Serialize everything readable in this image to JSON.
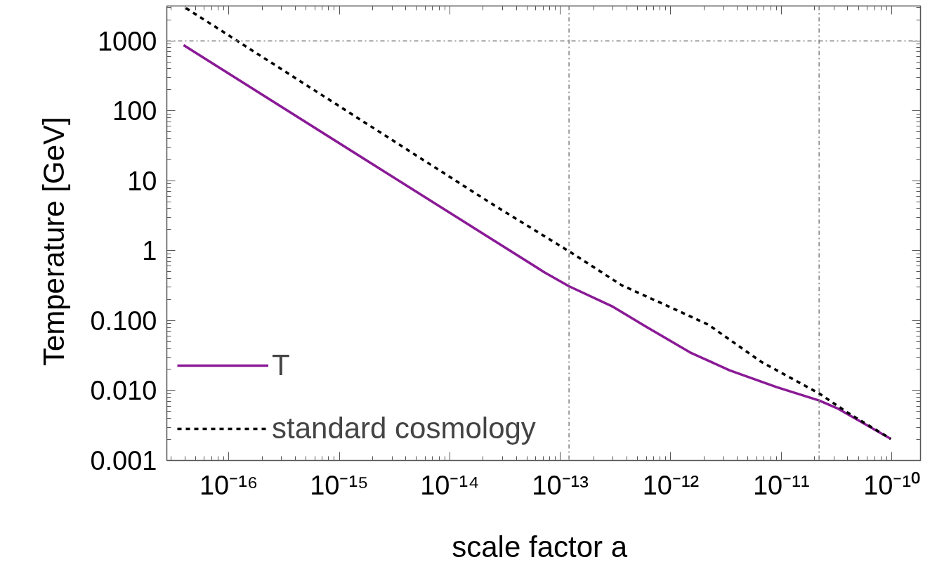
{
  "chart_data": {
    "type": "line",
    "xlabel": "scale factor  a",
    "ylabel": "Temperature   [GeV]",
    "log": "xy",
    "xlim": [
      2.75e-17,
      1.82e-10
    ],
    "ylim": [
      0.001,
      3160
    ],
    "xticks": [
      {
        "value": 1e-16,
        "label": "10⁻¹⁶"
      },
      {
        "value": 1e-15,
        "label": "10⁻¹⁵"
      },
      {
        "value": 1e-14,
        "label": "10⁻¹⁴"
      },
      {
        "value": 1e-13,
        "label": "10⁻¹³"
      },
      {
        "value": 1e-12,
        "label": "10⁻¹²"
      },
      {
        "value": 1e-11,
        "label": "10⁻¹¹"
      },
      {
        "value": 1e-10,
        "label": "10⁻¹⁰"
      }
    ],
    "yticks": [
      {
        "value": 0.001,
        "label": "0.001"
      },
      {
        "value": 0.01,
        "label": "0.010"
      },
      {
        "value": 0.1,
        "label": "0.100"
      },
      1,
      10,
      100,
      1000
    ],
    "grid": false,
    "legend": "bottom left",
    "series": [
      {
        "name": "T",
        "color": "#8a1a96",
        "line_style": "solid",
        "x": [
          3.9e-17,
          2.5e-14,
          7.2e-14,
          1.2e-13,
          3e-13,
          5.9e-13,
          1.5e-12,
          3.4e-12,
          9.1e-12,
          2.2e-11,
          3.2e-11,
          9.8e-11
        ],
        "values": [
          870,
          1.4,
          0.49,
          0.31,
          0.158,
          0.083,
          0.035,
          0.0195,
          0.0112,
          0.0072,
          0.0056,
          0.00204
        ]
      },
      {
        "name": "standard cosmology",
        "color": "#000000",
        "line_style": "dashed",
        "x": [
          4.1e-17,
          2.5e-14,
          1.2e-13,
          3.6e-13,
          1.17e-12,
          2.2e-12,
          6.6e-12,
          2.2e-11,
          4.1e-11,
          9.8e-11
        ],
        "values": [
          2950,
          4.5,
          0.98,
          0.32,
          0.138,
          0.087,
          0.0257,
          0.0091,
          0.0047,
          0.00204
        ]
      }
    ],
    "ref_lines": [
      {
        "axis": "y",
        "value": 1000,
        "color": "#808080",
        "line_style": "dashdot"
      },
      {
        "axis": "x",
        "value": 1.2e-13,
        "color": "#808080",
        "line_style": "dashdot"
      },
      {
        "axis": "x",
        "value": 2.2e-11,
        "color": "#808080",
        "line_style": "dashdot"
      }
    ]
  }
}
